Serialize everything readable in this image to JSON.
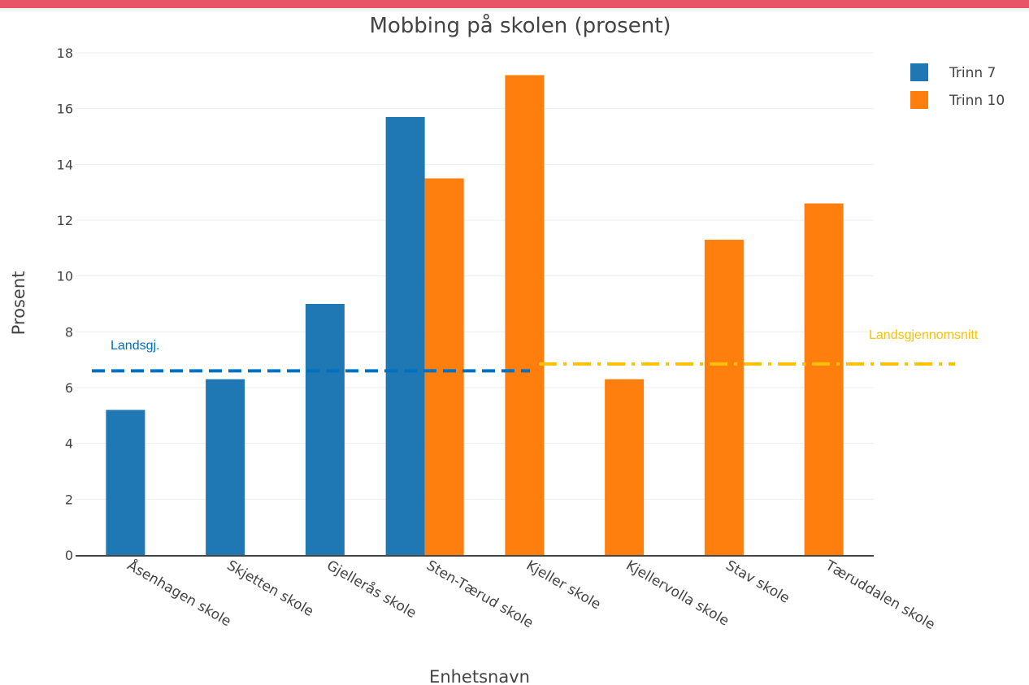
{
  "chart_data": {
    "type": "bar",
    "title": "Mobbing på skolen (prosent)",
    "xlabel": "Enhetsnavn",
    "ylabel": "Prosent",
    "ylim": [
      0,
      18
    ],
    "yticks": [
      0,
      2,
      4,
      6,
      8,
      10,
      12,
      14,
      16,
      18
    ],
    "grid": true,
    "legend_position": "top-right",
    "categories": [
      "Åsenhagen skole",
      "Skjetten skole",
      "Gjellerås skole",
      "Sten-Tærud skole",
      "Kjeller skole",
      "Kjellervolla skole",
      "Stav skole",
      "Tæruddalen skole"
    ],
    "series": [
      {
        "name": "Trinn 7",
        "color": "#1f77b4",
        "values": [
          5.2,
          6.3,
          9.0,
          15.7,
          null,
          null,
          null,
          null
        ]
      },
      {
        "name": "Trinn 10",
        "color": "#ff7f0e",
        "values": [
          null,
          null,
          null,
          13.5,
          17.2,
          6.3,
          11.3,
          12.6
        ]
      }
    ],
    "annotations": [
      {
        "text": "Landsgj.",
        "value": 6.6,
        "color": "#0070c0",
        "style": "dashed",
        "from_category": 0,
        "to_category": 4
      },
      {
        "text": "Landsgjennomsnitt",
        "value": 6.85,
        "color": "#ffc000",
        "style": "dash-dot",
        "from_category": 4,
        "to_category": 7
      }
    ]
  }
}
